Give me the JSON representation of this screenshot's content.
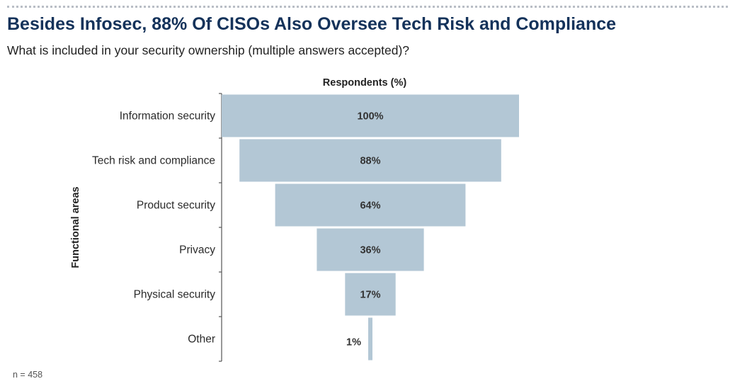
{
  "header": {
    "title": "Besides Infosec, 88% Of CISOs Also Oversee Tech Risk and Compliance",
    "subtitle": "What is included in your security ownership (multiple answers accepted)?"
  },
  "footnote": "n = 458",
  "colors": {
    "bar": "#b3c7d5",
    "title": "#14325a",
    "axis": "#555555",
    "label_text": "#333333"
  },
  "chart_data": {
    "type": "bar",
    "orientation": "horizontal-funnel",
    "title": "Besides Infosec, 88% Of CISOs Also Oversee Tech Risk and Compliance",
    "xlabel": "Respondents (%)",
    "ylabel": "Functional areas",
    "categories": [
      "Information security",
      "Tech risk and compliance",
      "Product security",
      "Privacy",
      "Physical security",
      "Other"
    ],
    "values": [
      100,
      88,
      64,
      36,
      17,
      1
    ],
    "value_labels": [
      "100%",
      "88%",
      "64%",
      "36%",
      "17%",
      "1%"
    ],
    "xlim": [
      0,
      100
    ],
    "grid": false,
    "legend": "none"
  }
}
